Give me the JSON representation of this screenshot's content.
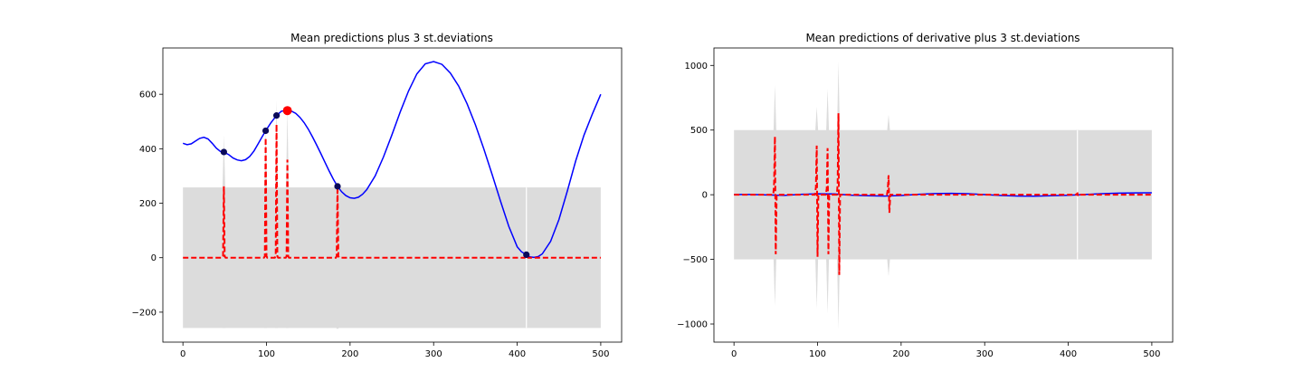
{
  "colors": {
    "band": "#dcdcdc",
    "mean": "#0000ff",
    "derivative": "#ff0000",
    "samples": "#0a0a5a",
    "best_sample": "#ff0000"
  },
  "chart_data": [
    {
      "type": "line",
      "title": "Mean predictions plus 3 st.deviations",
      "xlabel": "",
      "ylabel": "",
      "xlim": [
        -24,
        525
      ],
      "ylim": [
        -310,
        770
      ],
      "xticks": [
        0,
        100,
        200,
        300,
        400,
        500
      ],
      "yticks": [
        -200,
        0,
        200,
        400,
        600
      ],
      "grid": false,
      "band": {
        "base_upper": 258,
        "base_lower": -258,
        "spikes": [
          {
            "x": 49,
            "upper": 450,
            "lower": -258
          },
          {
            "x": 99,
            "upper": 470,
            "lower": -258
          },
          {
            "x": 112,
            "upper": 580,
            "lower": -258
          },
          {
            "x": 125,
            "upper": 545,
            "lower": -258
          },
          {
            "x": 185,
            "upper": 262,
            "lower": -262
          },
          {
            "x": 411,
            "upper": 258,
            "lower": -258
          }
        ]
      },
      "series": [
        {
          "style": "solid",
          "x": [
            0,
            5,
            10,
            15,
            20,
            25,
            30,
            35,
            40,
            45,
            49,
            55,
            60,
            65,
            70,
            75,
            80,
            85,
            90,
            95,
            99,
            105,
            112,
            118,
            125,
            130,
            135,
            140,
            145,
            150,
            155,
            160,
            165,
            170,
            175,
            180,
            185,
            190,
            195,
            200,
            205,
            210,
            215,
            220,
            230,
            240,
            250,
            260,
            270,
            280,
            290,
            300,
            310,
            320,
            330,
            340,
            350,
            360,
            370,
            380,
            390,
            400,
            405,
            411,
            415,
            420,
            425,
            430,
            440,
            450,
            460,
            470,
            480,
            490,
            500
          ],
          "y": [
            420,
            415,
            418,
            428,
            438,
            442,
            436,
            420,
            402,
            390,
            388,
            378,
            366,
            359,
            356,
            360,
            372,
            392,
            418,
            445,
            466,
            494,
            522,
            538,
            540,
            538,
            530,
            515,
            496,
            472,
            444,
            414,
            383,
            350,
            318,
            288,
            262,
            242,
            228,
            220,
            218,
            222,
            233,
            250,
            300,
            370,
            450,
            535,
            612,
            675,
            712,
            720,
            710,
            678,
            630,
            565,
            488,
            400,
            305,
            208,
            115,
            40,
            22,
            11,
            3,
            1,
            4,
            14,
            60,
            140,
            245,
            355,
            450,
            528,
            600
          ]
        },
        {
          "style": "dashed",
          "x": [
            0,
            47,
            48,
            49,
            50,
            51,
            97,
            98,
            99,
            100,
            101,
            110,
            111,
            112,
            113,
            114,
            123,
            124,
            125,
            126,
            127,
            183,
            184,
            185,
            186,
            187,
            409,
            410,
            411,
            412,
            413,
            500
          ],
          "y": [
            0,
            0,
            5,
            262,
            5,
            0,
            0,
            5,
            440,
            5,
            0,
            0,
            5,
            490,
            5,
            0,
            0,
            5,
            360,
            5,
            0,
            0,
            5,
            262,
            5,
            0,
            0,
            2,
            8,
            2,
            0,
            0
          ]
        }
      ],
      "points": [
        {
          "x": 49,
          "y": 388
        },
        {
          "x": 99,
          "y": 466
        },
        {
          "x": 112,
          "y": 522
        },
        {
          "x": 185,
          "y": 262
        },
        {
          "x": 411,
          "y": 11
        }
      ],
      "best_point": {
        "x": 125,
        "y": 540
      }
    },
    {
      "type": "line",
      "title": "Mean predictions of derivative plus 3 st.deviations",
      "xlabel": "",
      "ylabel": "",
      "xlim": [
        -24,
        525
      ],
      "ylim": [
        -1140,
        1135
      ],
      "xticks": [
        0,
        100,
        200,
        300,
        400,
        500
      ],
      "yticks": [
        -1000,
        -500,
        0,
        500,
        1000
      ],
      "grid": false,
      "band": {
        "base_upper": 500,
        "base_lower": -500,
        "spikes": [
          {
            "x": 49,
            "upper": 850,
            "lower": -860
          },
          {
            "x": 99,
            "upper": 680,
            "lower": -880
          },
          {
            "x": 112,
            "upper": 820,
            "lower": -920
          },
          {
            "x": 125,
            "upper": 1030,
            "lower": -1040
          },
          {
            "x": 185,
            "upper": 620,
            "lower": -630
          },
          {
            "x": 411,
            "upper": 500,
            "lower": -500
          }
        ]
      },
      "series": [
        {
          "style": "solid",
          "x": [
            0,
            20,
            40,
            60,
            80,
            100,
            120,
            140,
            160,
            180,
            200,
            220,
            240,
            260,
            280,
            300,
            320,
            340,
            360,
            380,
            400,
            420,
            440,
            460,
            480,
            500
          ],
          "y": [
            2,
            2,
            -2,
            -5,
            3,
            7,
            6,
            -3,
            -8,
            -10,
            -6,
            3,
            9,
            11,
            8,
            1,
            -6,
            -10,
            -11,
            -8,
            -4,
            2,
            8,
            12,
            14,
            15
          ]
        },
        {
          "style": "dashed",
          "x": [
            0,
            47,
            48,
            49,
            50,
            51,
            97,
            98,
            99,
            100,
            101,
            110,
            111,
            112,
            113,
            114,
            123,
            124,
            125,
            126,
            127,
            183,
            184,
            185,
            186,
            187,
            409,
            410,
            411,
            412,
            413,
            500
          ],
          "y": [
            0,
            0,
            90,
            450,
            -460,
            0,
            0,
            60,
            380,
            -480,
            0,
            0,
            50,
            360,
            -460,
            0,
            0,
            80,
            630,
            -620,
            0,
            0,
            40,
            150,
            -140,
            0,
            0,
            5,
            10,
            -10,
            0,
            0
          ]
        }
      ]
    }
  ]
}
